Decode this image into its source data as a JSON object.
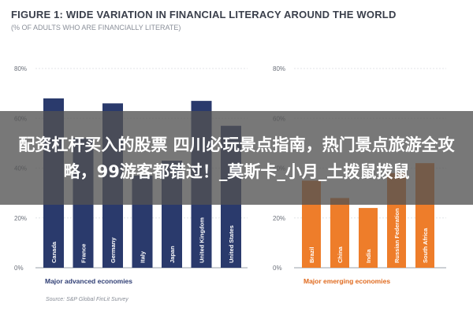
{
  "chart_data": {
    "type": "bar",
    "title": "FIGURE 1: WIDE VARIATION IN FINANCIAL LITERACY AROUND THE WORLD",
    "subtitle": "(% OF ADULTS WHO ARE FINANCIALLY LITERATE)",
    "source": "Source: S&P Global FinLit Survey",
    "grid": true,
    "panels": [
      {
        "name": "Major advanced economies",
        "color": "#2a3a6c",
        "ylim": [
          0,
          80
        ],
        "yticks": [
          "0%",
          "20%",
          "40%",
          "60%",
          "80%"
        ],
        "categories": [
          "Canada",
          "France",
          "Germany",
          "Italy",
          "Japan",
          "United Kingdom",
          "United States"
        ],
        "values": [
          68,
          52,
          66,
          37,
          43,
          67,
          57
        ]
      },
      {
        "name": "Major emerging economies",
        "color": "#ee7d2a",
        "ylim": [
          0,
          80
        ],
        "yticks": [
          "0%",
          "20%",
          "40%",
          "60%",
          "80%"
        ],
        "categories": [
          "Brazil",
          "China",
          "India",
          "Russian Federation",
          "South Africa"
        ],
        "values": [
          35,
          28,
          24,
          38,
          42
        ]
      }
    ]
  },
  "overlay": {
    "caption": "配资杠杆买入的股票 四川必玩景点指南，热门景点旅游全攻略，99游客都错过！_莫斯卡_小月_土拨鼠拨鼠"
  }
}
